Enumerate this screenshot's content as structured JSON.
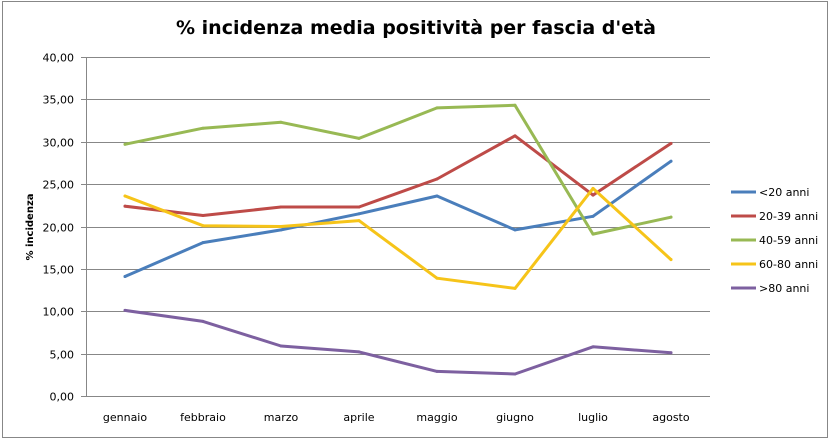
{
  "chart_data": {
    "type": "line",
    "title": "% incidenza media positività per fascia d'età",
    "xlabel": "",
    "ylabel": "% incidenza",
    "categories": [
      "gennaio",
      "febbraio",
      "marzo",
      "aprile",
      "maggio",
      "giugno",
      "luglio",
      "agosto"
    ],
    "ylim": [
      0,
      40
    ],
    "ytick_step": 5,
    "ytick_labels": [
      "0,00",
      "5,00",
      "10,00",
      "15,00",
      "20,00",
      "25,00",
      "30,00",
      "35,00",
      "40,00"
    ],
    "grid": true,
    "legend_position": "right",
    "series": [
      {
        "name": "<20 anni",
        "color": "#4a7ebb",
        "values": [
          14.1,
          18.1,
          19.6,
          21.5,
          23.6,
          19.6,
          21.2,
          27.7
        ]
      },
      {
        "name": "20-39 anni",
        "color": "#be4b48",
        "values": [
          22.4,
          21.3,
          22.3,
          22.3,
          25.6,
          30.7,
          23.7,
          29.8
        ]
      },
      {
        "name": "40-59 anni",
        "color": "#98b954",
        "values": [
          29.7,
          31.6,
          32.3,
          30.4,
          34.0,
          34.3,
          19.1,
          21.1
        ]
      },
      {
        "name": "60-80 anni",
        "color": "#f6c419",
        "values": [
          23.6,
          20.1,
          20.0,
          20.7,
          13.9,
          12.7,
          24.5,
          16.1
        ]
      },
      {
        "name": ">80 anni",
        "color": "#7d60a0",
        "values": [
          10.1,
          8.8,
          5.9,
          5.2,
          2.9,
          2.6,
          5.8,
          5.1
        ]
      }
    ]
  }
}
